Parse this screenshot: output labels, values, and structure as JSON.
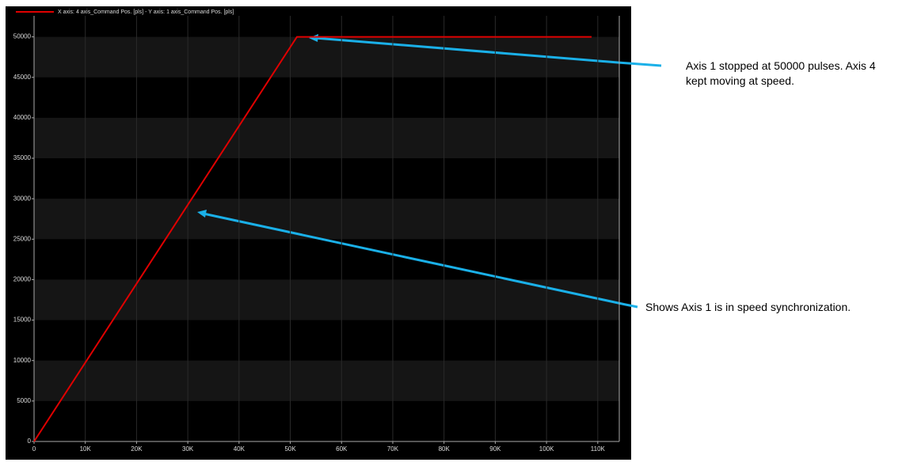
{
  "chart_data": {
    "type": "line",
    "legend_text": "X axis: 4 axis_Command Pos. [pls] - Y axis: 1 axis_Command Pos. [pls]",
    "x": [
      0,
      51300,
      108800
    ],
    "series": [
      {
        "name": "X axis: 4 axis_Command Pos. [pls] - Y axis: 1 axis_Command Pos. [pls]",
        "color": "#e00000",
        "values": [
          0,
          50000,
          50000
        ]
      }
    ],
    "xlim": [
      0,
      114200
    ],
    "ylim": [
      0,
      52600
    ],
    "xticks": [
      0,
      {
        "value": 10000,
        "label": "10K"
      },
      {
        "value": 20000,
        "label": "20K"
      },
      {
        "value": 30000,
        "label": "30K"
      },
      {
        "value": 40000,
        "label": "40K"
      },
      {
        "value": 50000,
        "label": "50K"
      },
      {
        "value": 60000,
        "label": "60K"
      },
      {
        "value": 70000,
        "label": "70K"
      },
      {
        "value": 80000,
        "label": "80K"
      },
      {
        "value": 90000,
        "label": "90K"
      },
      {
        "value": 100000,
        "label": "100K"
      },
      {
        "value": 110000,
        "label": "110K"
      }
    ],
    "yticks": [
      0,
      5000,
      10000,
      15000,
      20000,
      25000,
      30000,
      35000,
      40000,
      45000,
      50000
    ],
    "grid": true,
    "annotations": [
      "Axis 1 stopped at 50000 pulses. Axis 4 kept moving at speed.",
      "Shows Axis 1 is in speed synchronization."
    ]
  }
}
